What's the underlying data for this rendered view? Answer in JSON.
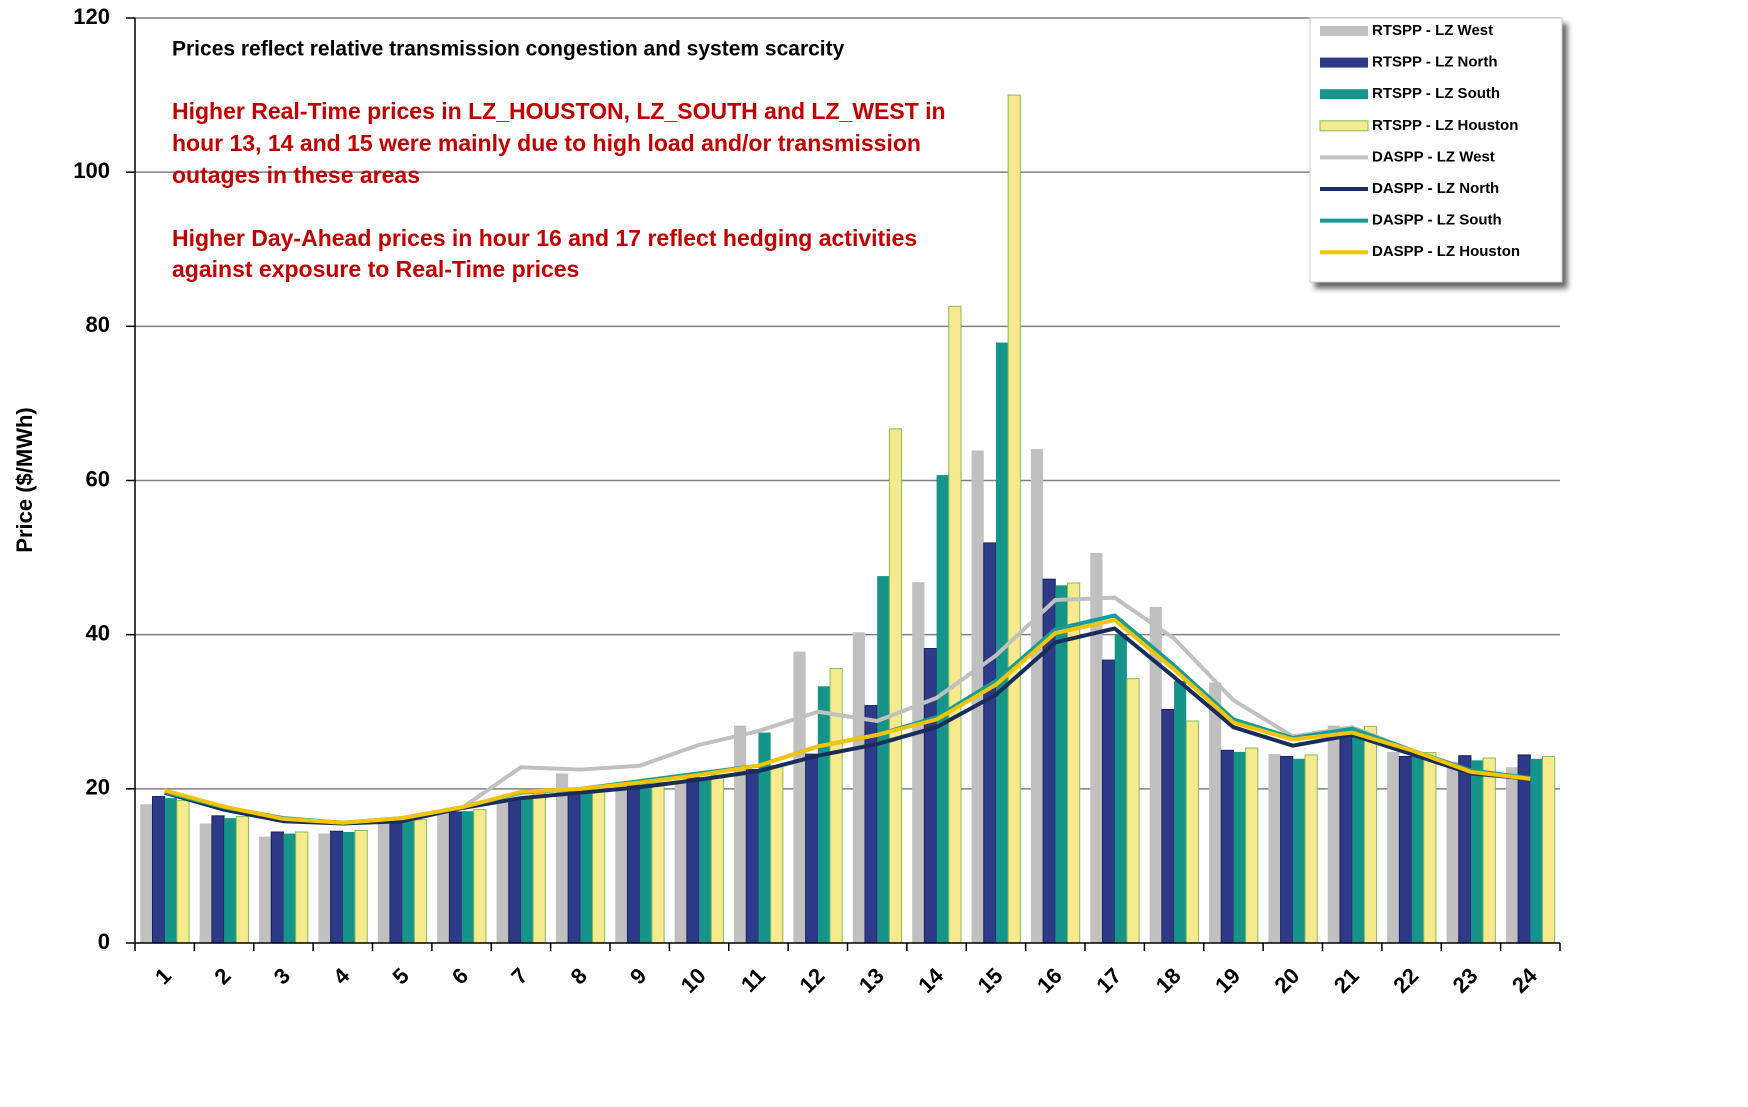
{
  "chart_data": {
    "type": "bar",
    "ylabel": "Price ($/MWh)",
    "categories": [
      "1",
      "2",
      "3",
      "4",
      "5",
      "6",
      "7",
      "8",
      "9",
      "10",
      "11",
      "12",
      "13",
      "14",
      "15",
      "16",
      "17",
      "18",
      "19",
      "20",
      "21",
      "22",
      "23",
      "24"
    ],
    "ylim": [
      0,
      120
    ],
    "yticks": [
      0,
      20,
      40,
      60,
      80,
      100,
      120
    ],
    "grid": true,
    "legend": "upper right",
    "annotations": [
      {
        "text": "Prices reflect relative transmission congestion and system scarcity",
        "color": "#000000"
      },
      {
        "text": "Higher Real-Time prices in LZ_HOUSTON, LZ_SOUTH  and LZ_WEST in",
        "color": "#c00000"
      },
      {
        "text": "hour 13, 14 and 15 were mainly due to high load and/or transmission",
        "color": "#c00000"
      },
      {
        "text": "outages in these areas",
        "color": "#c00000"
      },
      {
        "text": "Higher Day-Ahead prices in hour 16 and 17 reflect hedging activities",
        "color": "#c00000"
      },
      {
        "text": "against exposure to Real-Time prices",
        "color": "#c00000"
      }
    ],
    "series": [
      {
        "name": "RTSPP - LZ West",
        "kind": "bar",
        "color": "#c0c0c0",
        "values": [
          18,
          15.5,
          13.8,
          14.2,
          15.5,
          17,
          18.5,
          22,
          20.5,
          21,
          28.2,
          37.8,
          40.3,
          46.8,
          63.9,
          64.1,
          50.6,
          43.6,
          33.8,
          24.5,
          28.2,
          24.8,
          23.5,
          22.8
        ]
      },
      {
        "name": "RTSPP - LZ North",
        "kind": "bar",
        "color": "#2e3a87",
        "values": [
          19,
          16.5,
          14.4,
          14.5,
          15.7,
          17,
          18.7,
          19.8,
          20.5,
          21.5,
          22.5,
          24.5,
          30.8,
          38.2,
          51.9,
          47.2,
          36.7,
          30.3,
          25,
          24.2,
          27.5,
          24.2,
          24.3,
          24.4
        ]
      },
      {
        "name": "RTSPP - LZ South",
        "kind": "bar",
        "color": "#16948a",
        "values": [
          18.8,
          16.2,
          14.2,
          14.4,
          15.8,
          17.1,
          19,
          19.8,
          20.7,
          21.5,
          27.3,
          33.3,
          47.6,
          60.7,
          77.9,
          46.4,
          40,
          34,
          24.8,
          23.9,
          27.5,
          24.3,
          23.7,
          23.9
        ]
      },
      {
        "name": "RTSPP - LZ Houston",
        "kind": "bar",
        "color": "#f7e98e",
        "values": [
          18.5,
          16.4,
          14.4,
          14.6,
          16,
          17.3,
          19.5,
          20,
          20.8,
          21.8,
          23,
          35.6,
          66.7,
          82.6,
          110,
          46.7,
          34.3,
          28.8,
          25.3,
          24.4,
          28.1,
          24.7,
          24,
          24.2
        ]
      },
      {
        "name": "DASPP - LZ West",
        "kind": "line",
        "color": "#c0c0c0",
        "values": [
          19.5,
          17.5,
          16,
          15.5,
          16,
          17.5,
          22.8,
          22.5,
          23,
          25.7,
          27.5,
          30,
          28.8,
          31.8,
          37.3,
          44.5,
          44.8,
          39.5,
          31.5,
          26.8,
          28,
          25,
          22.3,
          21.3
        ]
      },
      {
        "name": "DASPP - LZ North",
        "kind": "line",
        "color": "#1a2d5a",
        "values": [
          19.5,
          17.3,
          15.8,
          15.5,
          15.8,
          17.5,
          18.8,
          19.5,
          20.2,
          21.2,
          22.3,
          24.3,
          25.8,
          28,
          32.2,
          39,
          40.8,
          34.5,
          28,
          25.6,
          27,
          24.5,
          22,
          21.3
        ]
      },
      {
        "name": "DASPP - LZ South",
        "kind": "line",
        "color": "#169c98",
        "values": [
          19.6,
          17.6,
          16.2,
          15.6,
          16.2,
          17.6,
          19.5,
          20,
          21,
          22,
          23,
          25.5,
          27,
          29.3,
          34,
          40.7,
          42.5,
          36,
          29,
          26.6,
          27.8,
          25,
          22.4,
          21.4
        ]
      },
      {
        "name": "DASPP - LZ Houston",
        "kind": "line",
        "color": "#f5c400",
        "values": [
          19.8,
          17.7,
          16.1,
          15.6,
          16.2,
          17.6,
          19.6,
          20,
          20.8,
          21.8,
          23,
          25.5,
          27,
          29,
          33.5,
          40.2,
          41.9,
          35.5,
          28.6,
          26.4,
          27.3,
          25,
          22.2,
          21.3
        ]
      }
    ]
  }
}
